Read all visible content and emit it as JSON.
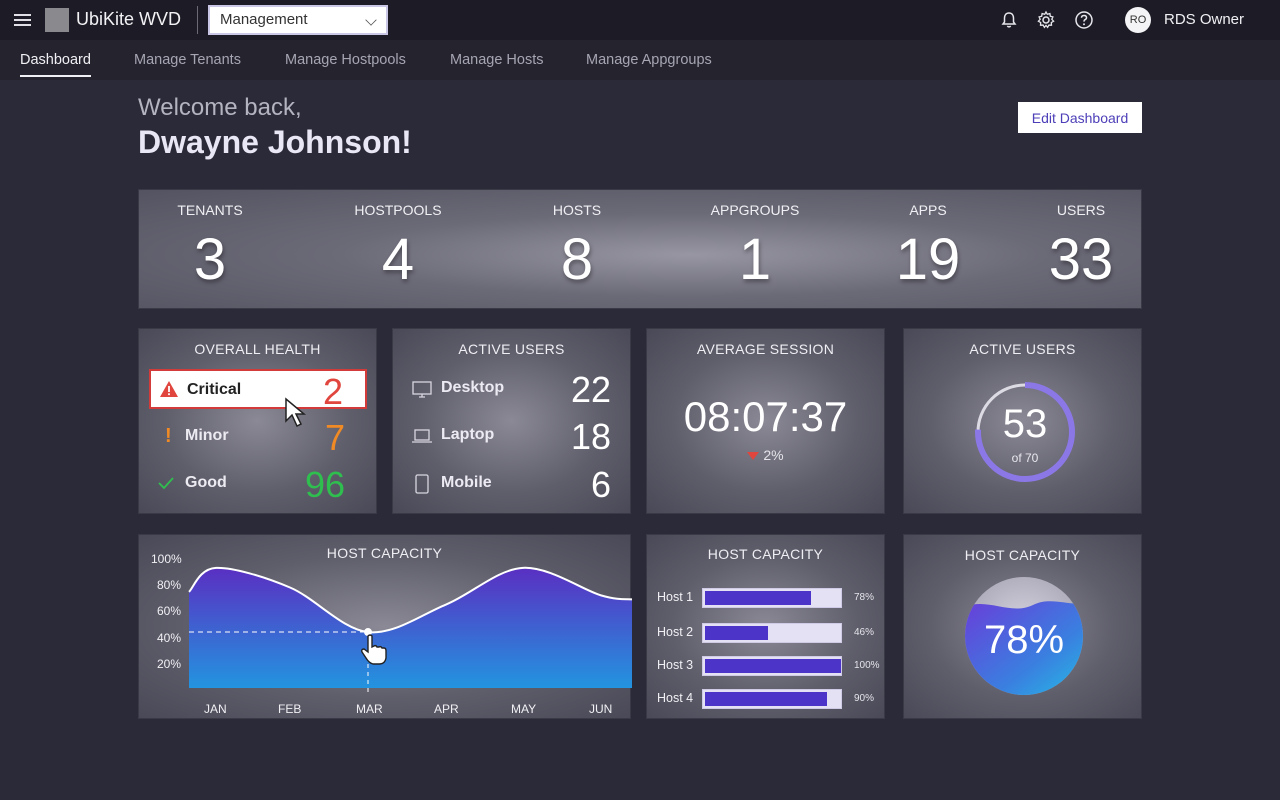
{
  "app": {
    "title": "UbiKite WVD",
    "context_select": "Management"
  },
  "user": {
    "initials": "RO",
    "name": "RDS Owner"
  },
  "icons": {
    "menu": "hamburger-icon",
    "notifications": "bell-icon",
    "settings": "gear-icon",
    "help": "help-icon"
  },
  "tabs": [
    {
      "label": "Dashboard",
      "active": true
    },
    {
      "label": "Manage Tenants"
    },
    {
      "label": "Manage Hostpools"
    },
    {
      "label": "Manage Hosts"
    },
    {
      "label": "Manage Appgroups"
    }
  ],
  "welcome": {
    "greeting": "Welcome back,",
    "name": "Dwayne Johnson!"
  },
  "edit_button": "Edit Dashboard",
  "stats": [
    {
      "label": "TENANTS",
      "value": "3"
    },
    {
      "label": "HOSTPOOLS",
      "value": "4"
    },
    {
      "label": "HOSTS",
      "value": "8"
    },
    {
      "label": "APPGROUPS",
      "value": "1"
    },
    {
      "label": "APPS",
      "value": "19"
    },
    {
      "label": "USERS",
      "value": "33"
    }
  ],
  "health": {
    "title": "OVERALL HEALTH",
    "rows": [
      {
        "label": "Critical",
        "value": "2",
        "color": "#e0463d",
        "icon": "warning-triangle-icon"
      },
      {
        "label": "Minor",
        "value": "7",
        "color": "#f08a24",
        "icon": "exclamation-icon"
      },
      {
        "label": "Good",
        "value": "96",
        "color": "#2fbf4f",
        "icon": "check-icon"
      }
    ]
  },
  "active_users": {
    "title": "ACTIVE USERS",
    "rows": [
      {
        "label": "Desktop",
        "value": "22",
        "icon": "desktop-icon"
      },
      {
        "label": "Laptop",
        "value": "18",
        "icon": "laptop-icon"
      },
      {
        "label": "Mobile",
        "value": "6",
        "icon": "mobile-icon"
      }
    ]
  },
  "avg_session": {
    "title": "AVERAGE SESSION",
    "value": "08:07:37",
    "change": "2%",
    "trend": "down"
  },
  "active_users_ring": {
    "title": "ACTIVE USERS",
    "value": "53",
    "of_label": "of 70",
    "fraction": 0.757,
    "accent": "#8b78e6"
  },
  "host_capacity_chart": {
    "title": "HOST CAPACITY",
    "chart_data": {
      "type": "area",
      "categories": [
        "JAN",
        "FEB",
        "MAR",
        "APR",
        "MAY",
        "JUN"
      ],
      "values": [
        94,
        79,
        45,
        66,
        94,
        73
      ],
      "ylim": [
        0,
        100
      ],
      "yticks": [
        "20%",
        "40%",
        "60%",
        "80%",
        "100%"
      ],
      "highlight": {
        "category": "MAR",
        "value": 45
      }
    }
  },
  "host_capacity_bars": {
    "title": "HOST CAPACITY",
    "chart_data": {
      "type": "bar",
      "categories": [
        "Host 1",
        "Host 2",
        "Host 3",
        "Host 4"
      ],
      "values": [
        78,
        46,
        100,
        90
      ],
      "labels": [
        "78%",
        "46%",
        "100%",
        "90%"
      ]
    }
  },
  "host_capacity_gauge": {
    "title": "HOST CAPACITY",
    "value": "78%",
    "fraction": 0.78
  }
}
